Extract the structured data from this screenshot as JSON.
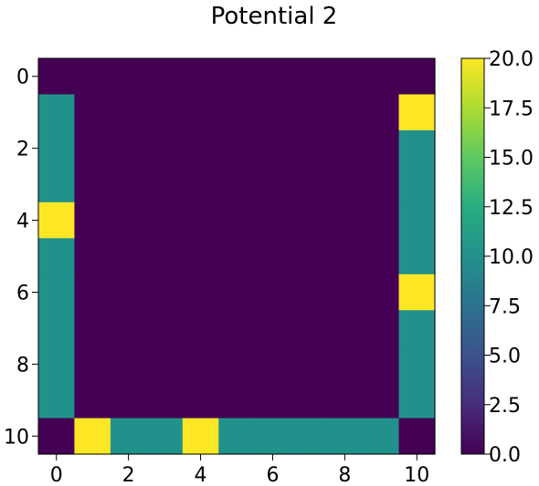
{
  "chart_data": {
    "type": "heatmap",
    "title": "Potential 2",
    "xlabel": "",
    "ylabel": "",
    "colormap": "viridis",
    "value_range": [
      0.0,
      20.0
    ],
    "x_ticks": [
      0,
      2,
      4,
      6,
      8,
      10
    ],
    "y_ticks": [
      0,
      2,
      4,
      6,
      8,
      10
    ],
    "x_tick_labels": [
      "0",
      "2",
      "4",
      "6",
      "8",
      "10"
    ],
    "y_tick_labels": [
      "0",
      "2",
      "4",
      "6",
      "8",
      "10"
    ],
    "colorbar_ticks": [
      0.0,
      2.5,
      5.0,
      7.5,
      10.0,
      12.5,
      15.0,
      17.5,
      20.0
    ],
    "colorbar_tick_labels": [
      "0.0",
      "2.5",
      "5.0",
      "7.5",
      "10.0",
      "12.5",
      "15.0",
      "17.5",
      "20.0"
    ],
    "grid": false,
    "matrix": [
      [
        0,
        0,
        0,
        0,
        0,
        0,
        0,
        0,
        0,
        0,
        0
      ],
      [
        10,
        0,
        0,
        0,
        0,
        0,
        0,
        0,
        0,
        0,
        20
      ],
      [
        10,
        0,
        0,
        0,
        0,
        0,
        0,
        0,
        0,
        0,
        10
      ],
      [
        10,
        0,
        0,
        0,
        0,
        0,
        0,
        0,
        0,
        0,
        10
      ],
      [
        20,
        0,
        0,
        0,
        0,
        0,
        0,
        0,
        0,
        0,
        10
      ],
      [
        10,
        0,
        0,
        0,
        0,
        0,
        0,
        0,
        0,
        0,
        10
      ],
      [
        10,
        0,
        0,
        0,
        0,
        0,
        0,
        0,
        0,
        0,
        20
      ],
      [
        10,
        0,
        0,
        0,
        0,
        0,
        0,
        0,
        0,
        0,
        10
      ],
      [
        10,
        0,
        0,
        0,
        0,
        0,
        0,
        0,
        0,
        0,
        10
      ],
      [
        10,
        0,
        0,
        0,
        0,
        0,
        0,
        0,
        0,
        0,
        10
      ],
      [
        0,
        20,
        10,
        10,
        20,
        10,
        10,
        10,
        10,
        10,
        0
      ]
    ]
  }
}
